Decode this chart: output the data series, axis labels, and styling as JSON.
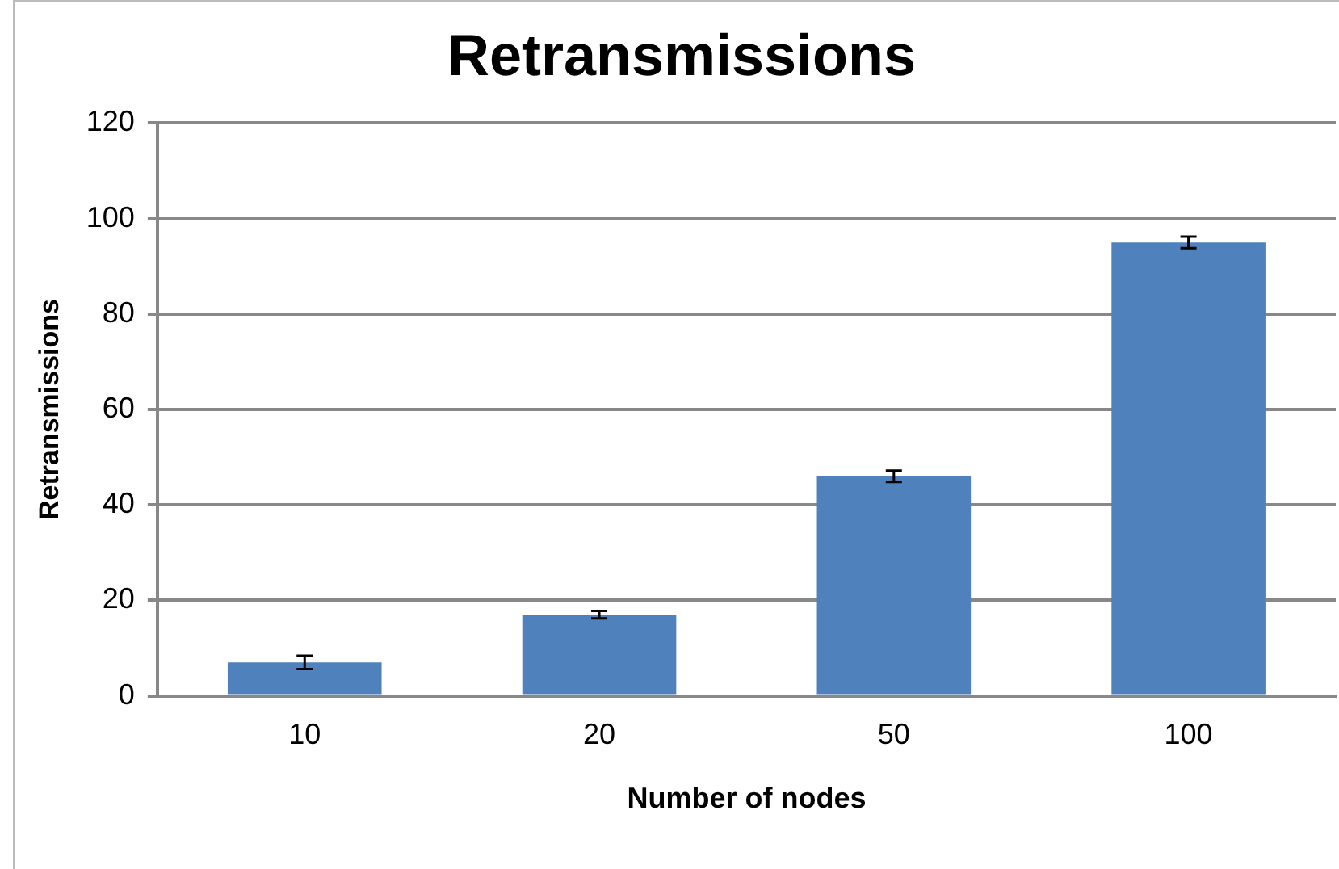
{
  "chart_data": {
    "type": "bar",
    "title": "Retransmissions",
    "xlabel": "Number of nodes",
    "ylabel": "Retransmissions",
    "categories": [
      "10",
      "20",
      "50",
      "100"
    ],
    "series": [
      {
        "color": "#4f81bd",
        "values": [
          7,
          17,
          46,
          95
        ],
        "errors": [
          1.4,
          0.8,
          1.2,
          1.2
        ]
      }
    ],
    "ylim": [
      0,
      120
    ],
    "yticks": [
      0,
      20,
      40,
      60,
      80,
      100,
      120
    ],
    "grid": "y",
    "legend": false
  }
}
